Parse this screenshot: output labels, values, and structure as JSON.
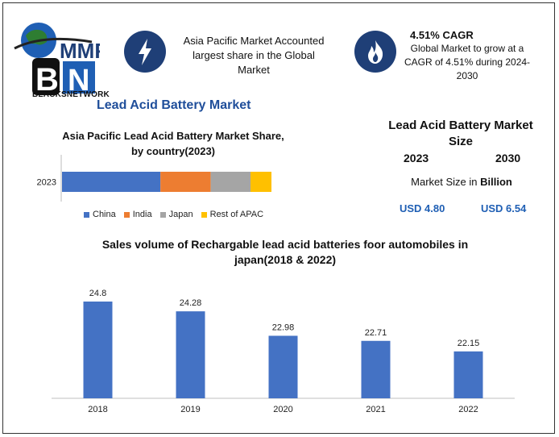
{
  "logo": {
    "text": "BLACKSNETWORK",
    "letters": "MMR"
  },
  "header": {
    "title": "Lead Acid Battery Market"
  },
  "info_boxes": [
    {
      "icon": "lightning-icon",
      "text": "Asia Pacific Market Accounted largest share in the Global Market"
    },
    {
      "icon": "flame-icon",
      "headline": "4.51% CAGR",
      "text": "Global Market to grow at a CAGR of 4.51% during 2024-2030"
    }
  ],
  "market_size": {
    "title": "Lead Acid Battery Market Size",
    "year_a": "2023",
    "year_b": "2030",
    "label_prefix": "Market Size in ",
    "label_unit": "Billion",
    "value_a": "USD 4.80",
    "value_b": "USD 6.54"
  },
  "colors": {
    "china": "#4472c4",
    "india": "#ed7d31",
    "japan": "#a5a5a5",
    "apac": "#ffc000",
    "bars": "#4472c4",
    "icon_circle": "#1f3f77",
    "title_blue": "#1f4e9a"
  },
  "chart_data": [
    {
      "type": "bar",
      "orientation": "horizontal-stacked",
      "title": "Asia Pacific Lead Acid Battery Market Share, by country(2023)",
      "categories": [
        "2023"
      ],
      "series": [
        {
          "name": "China",
          "values": [
            47
          ]
        },
        {
          "name": "India",
          "values": [
            24
          ]
        },
        {
          "name": "Japan",
          "values": [
            19
          ]
        },
        {
          "name": "Rest of APAC",
          "values": [
            10
          ]
        }
      ],
      "legend": "bottom"
    },
    {
      "type": "bar",
      "title": "Sales volume of Rechargable lead acid batteries foor automobiles in japan(2018 & 2022)",
      "categories": [
        "2018",
        "2019",
        "2020",
        "2021",
        "2022"
      ],
      "values": [
        24.8,
        24.28,
        22.98,
        22.71,
        22.15
      ],
      "labels": [
        "24.8",
        "24.28",
        "22.98",
        "22.71",
        "22.15"
      ],
      "ylim": [
        20,
        26
      ]
    }
  ]
}
